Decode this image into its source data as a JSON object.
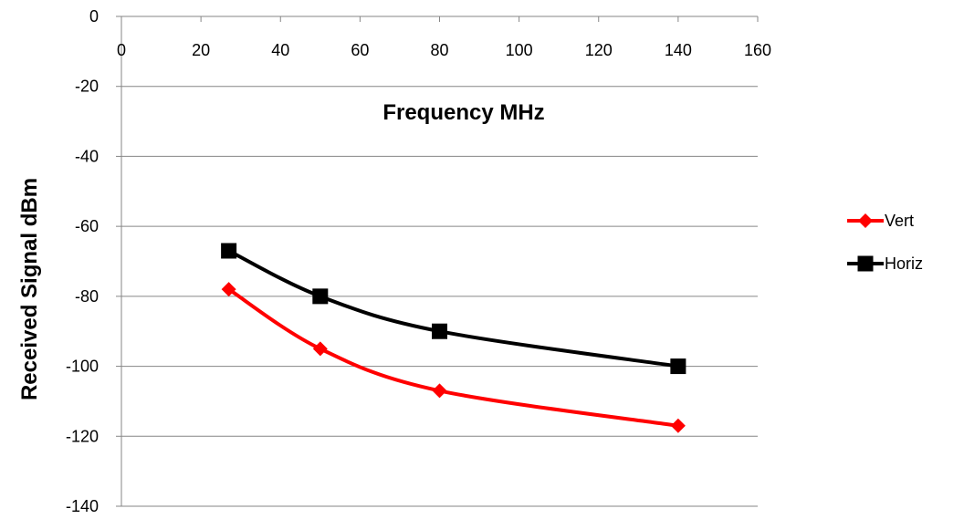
{
  "chart_data": {
    "type": "line",
    "title": "",
    "xlabel": "Frequency MHz",
    "ylabel": "Received Signal dBm",
    "xlim": [
      0,
      160
    ],
    "ylim": [
      -140,
      0
    ],
    "x_ticks": [
      0,
      20,
      40,
      60,
      80,
      100,
      120,
      140,
      160
    ],
    "y_ticks": [
      0,
      -20,
      -40,
      -60,
      -80,
      -100,
      -120,
      -140
    ],
    "x_tick_labels": [
      "0",
      "20",
      "40",
      "60",
      "80",
      "100",
      "120",
      "140",
      "160"
    ],
    "y_tick_labels": [
      "0",
      "-20",
      "-40",
      "-60",
      "-80",
      "-100",
      "-120",
      "-140"
    ],
    "x_axis_position": "top",
    "grid": "horizontal",
    "smooth": true,
    "legend_position": "right",
    "series": [
      {
        "name": "Vert",
        "color": "#ff0000",
        "marker": "diamond",
        "x": [
          27,
          50,
          80,
          140
        ],
        "y": [
          -78,
          -95,
          -107,
          -117
        ]
      },
      {
        "name": "Horiz",
        "color": "#000000",
        "marker": "square",
        "x": [
          27,
          50,
          80,
          140
        ],
        "y": [
          -67,
          -80,
          -90,
          -100
        ]
      }
    ]
  }
}
